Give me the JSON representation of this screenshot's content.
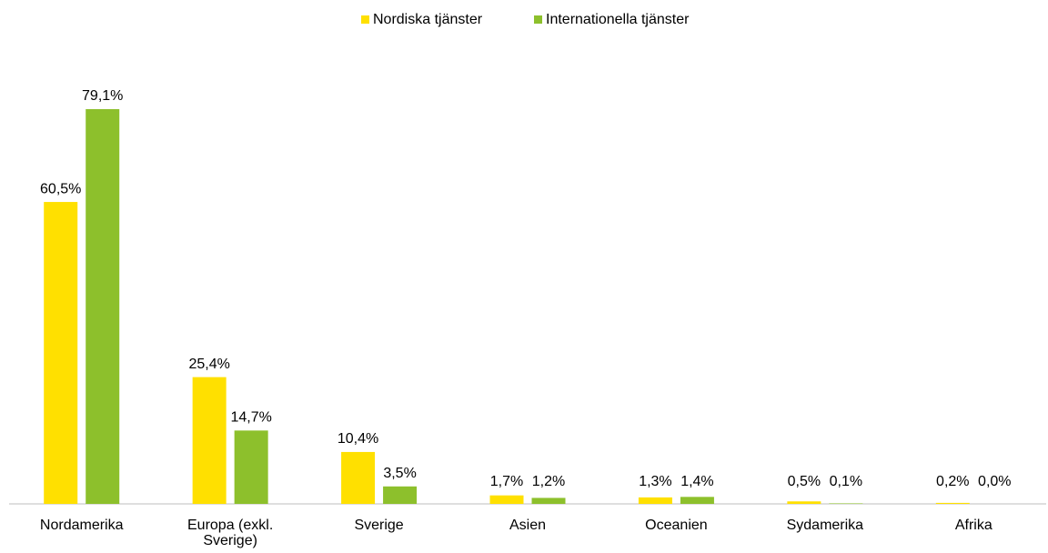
{
  "chart_data": {
    "type": "bar",
    "categories": [
      "Nordamerika",
      "Europa (exkl. Sverige)",
      "Sverige",
      "Asien",
      "Oceanien",
      "Sydamerika",
      "Afrika"
    ],
    "series": [
      {
        "name": "Nordiska tjänster",
        "color": "#FFE000",
        "values": [
          60.5,
          25.4,
          10.4,
          1.7,
          1.3,
          0.5,
          0.2
        ],
        "value_labels": [
          "60,5%",
          "25,4%",
          "10,4%",
          "1,7%",
          "1,3%",
          "0,5%",
          "0,2%"
        ]
      },
      {
        "name": "Internationella tjänster",
        "color": "#8DC02C",
        "values": [
          79.1,
          14.7,
          3.5,
          1.2,
          1.4,
          0.1,
          0.0
        ],
        "value_labels": [
          "79,1%",
          "14,7%",
          "3,5%",
          "1,2%",
          "1,4%",
          "0,1%",
          "0,0%"
        ]
      }
    ],
    "legend": "top"
  }
}
